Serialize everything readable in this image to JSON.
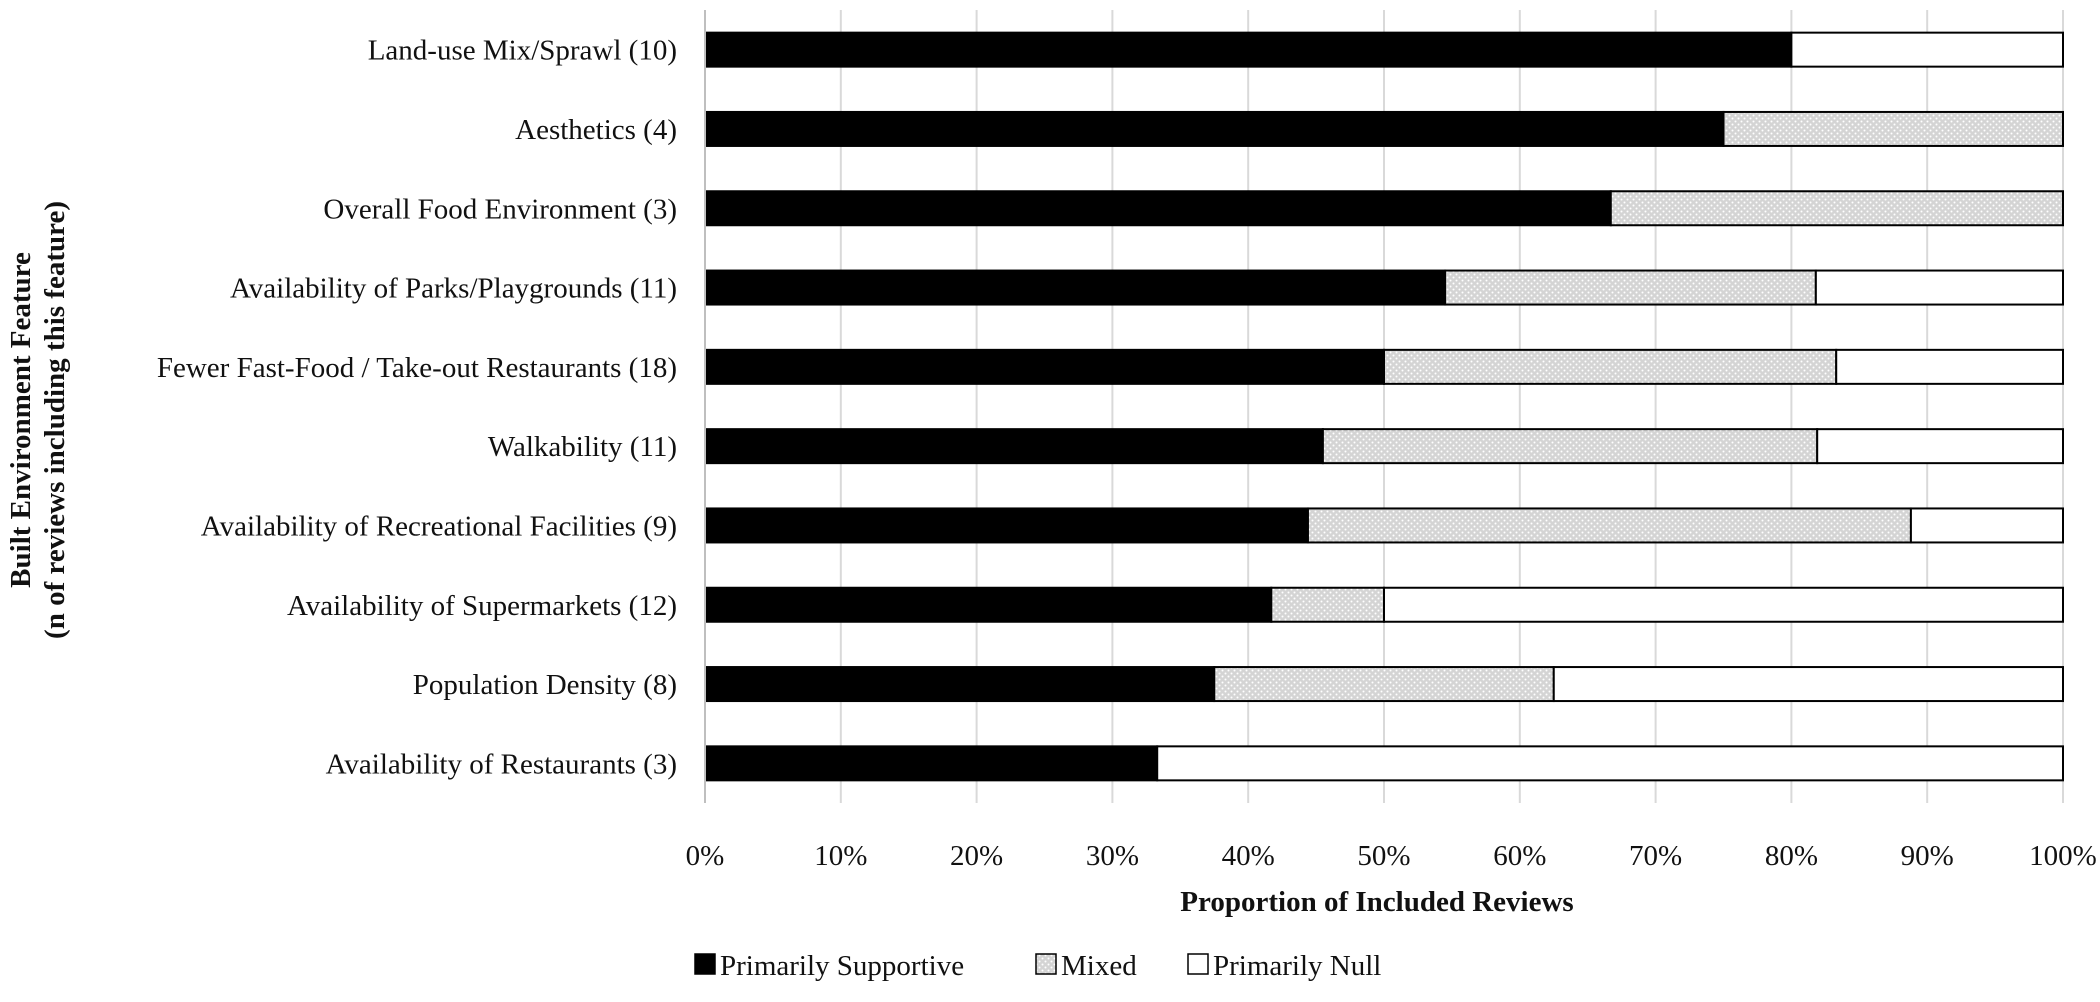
{
  "chart_data": {
    "type": "bar",
    "orientation": "horizontal",
    "stacked": true,
    "percent": true,
    "title": "",
    "xlabel": "Proportion of Included Reviews",
    "ylabel_line1": "Built Environment Feature",
    "ylabel_line2": "(n of reviews including this feature)",
    "xlim": [
      0,
      100
    ],
    "x_ticks": [
      0,
      10,
      20,
      30,
      40,
      50,
      60,
      70,
      80,
      90,
      100
    ],
    "x_tick_labels": [
      "0%",
      "10%",
      "20%",
      "30%",
      "40%",
      "50%",
      "60%",
      "70%",
      "80%",
      "90%",
      "100%"
    ],
    "grid": "vertical",
    "legend_position": "bottom",
    "categories": [
      "Land-use Mix/Sprawl (10)",
      "Aesthetics (4)",
      "Overall Food Environment (3)",
      "Availability of  Parks/Playgrounds (11)",
      "Fewer Fast-Food / Take-out Restaurants  (18)",
      "Walkability (11)",
      "Availability of  Recreational Facilities (9)",
      "Availability of Supermarkets (12)",
      "Population Density (8)",
      "Availability of  Restaurants (3)"
    ],
    "series": [
      {
        "name": "Primarily Supportive",
        "color": "#000000",
        "pattern": "solid",
        "values": [
          80.0,
          75.0,
          66.7,
          54.5,
          50.0,
          45.5,
          44.4,
          41.7,
          37.5,
          33.3
        ]
      },
      {
        "name": "Mixed",
        "color": "#d9d9d9",
        "pattern": "dotted",
        "values": [
          0.0,
          25.0,
          33.3,
          27.3,
          33.3,
          36.4,
          44.4,
          8.3,
          25.0,
          0.0
        ]
      },
      {
        "name": "Primarily Null",
        "color": "#ffffff",
        "pattern": "solid",
        "values": [
          20.0,
          0.0,
          0.0,
          18.2,
          16.7,
          18.1,
          11.2,
          50.0,
          37.5,
          66.7
        ]
      }
    ]
  }
}
